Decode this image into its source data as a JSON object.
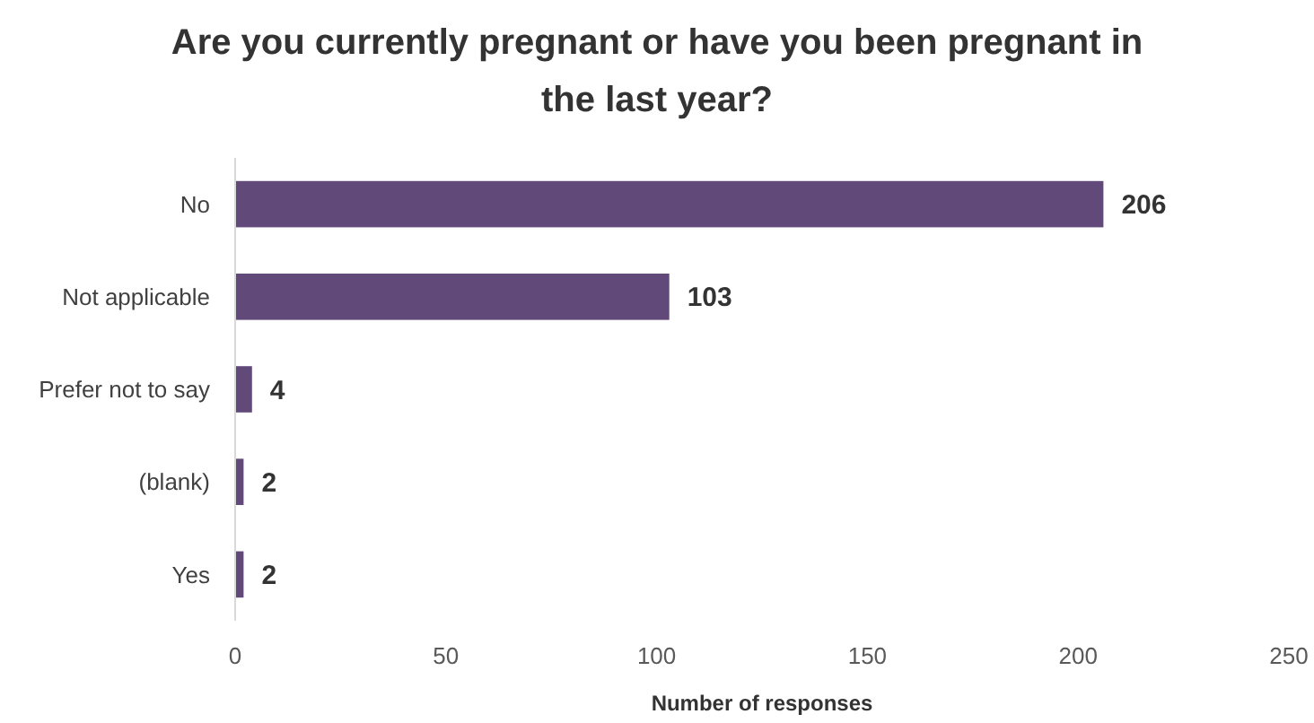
{
  "chart_data": {
    "type": "bar",
    "orientation": "horizontal",
    "title": "Are you currently pregnant or have you been pregnant in the last year?",
    "xlabel": "Number of responses",
    "categories": [
      "No",
      "Not applicable",
      "Prefer not to say",
      "(blank)",
      "Yes"
    ],
    "values": [
      206,
      103,
      4,
      2,
      2
    ],
    "color": "#614a7a",
    "xlim": [
      0,
      250
    ],
    "xticks": [
      0,
      50,
      100,
      150,
      200,
      250
    ],
    "data_labels": true
  }
}
